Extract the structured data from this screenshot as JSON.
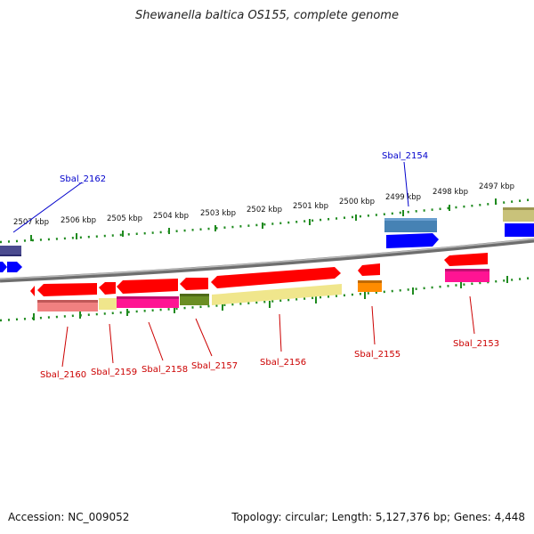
{
  "title": "Shewanella baltica OS155, complete genome",
  "footer": {
    "accession": "Accession: NC_009052",
    "topology": "Topology: circular; Length: 5,127,376 bp; Genes: 4,448"
  },
  "colors": {
    "backbone": "#8c8c8c",
    "ruler_tick": "#1e7a1e",
    "label_top": "#0000cc",
    "label_bottom": "#cc0000",
    "cds": "#ff0000",
    "gene_blue": "#0000ff",
    "gene_navy": "#4b4b8f"
  },
  "ruler_labels": [
    "2507 kbp",
    "2506 kbp",
    "2505 kbp",
    "2504 kbp",
    "2503 kbp",
    "2502 kbp",
    "2501 kbp",
    "2500 kbp",
    "2499 kbp",
    "2498 kbp",
    "2497 kbp"
  ],
  "top_labels": [
    "Sbal_2162",
    "Sbal_2154"
  ],
  "bottom_labels": [
    "Sbal_2160",
    "Sbal_2159",
    "Sbal_2158",
    "Sbal_2157",
    "Sbal_2156",
    "Sbal_2155",
    "Sbal_2153"
  ]
}
